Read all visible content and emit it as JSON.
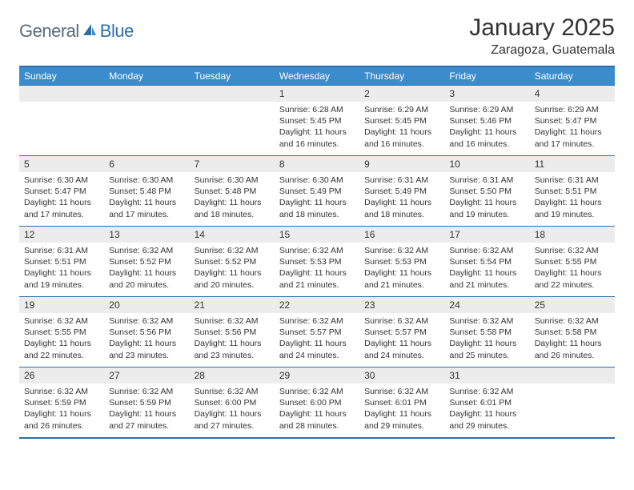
{
  "logo": {
    "text1": "General",
    "text2": "Blue"
  },
  "title": "January 2025",
  "location": "Zaragoza, Guatemala",
  "colors": {
    "header_bg": "#3b8ccc",
    "border": "#2f6fa8",
    "daynum_bg": "#ececec"
  },
  "day_names": [
    "Sunday",
    "Monday",
    "Tuesday",
    "Wednesday",
    "Thursday",
    "Friday",
    "Saturday"
  ],
  "weeks": [
    [
      {
        "n": "",
        "sr": "",
        "ss": "",
        "dl": ""
      },
      {
        "n": "",
        "sr": "",
        "ss": "",
        "dl": ""
      },
      {
        "n": "",
        "sr": "",
        "ss": "",
        "dl": ""
      },
      {
        "n": "1",
        "sr": "Sunrise: 6:28 AM",
        "ss": "Sunset: 5:45 PM",
        "dl": "Daylight: 11 hours and 16 minutes."
      },
      {
        "n": "2",
        "sr": "Sunrise: 6:29 AM",
        "ss": "Sunset: 5:45 PM",
        "dl": "Daylight: 11 hours and 16 minutes."
      },
      {
        "n": "3",
        "sr": "Sunrise: 6:29 AM",
        "ss": "Sunset: 5:46 PM",
        "dl": "Daylight: 11 hours and 16 minutes."
      },
      {
        "n": "4",
        "sr": "Sunrise: 6:29 AM",
        "ss": "Sunset: 5:47 PM",
        "dl": "Daylight: 11 hours and 17 minutes."
      }
    ],
    [
      {
        "n": "5",
        "sr": "Sunrise: 6:30 AM",
        "ss": "Sunset: 5:47 PM",
        "dl": "Daylight: 11 hours and 17 minutes."
      },
      {
        "n": "6",
        "sr": "Sunrise: 6:30 AM",
        "ss": "Sunset: 5:48 PM",
        "dl": "Daylight: 11 hours and 17 minutes."
      },
      {
        "n": "7",
        "sr": "Sunrise: 6:30 AM",
        "ss": "Sunset: 5:48 PM",
        "dl": "Daylight: 11 hours and 18 minutes."
      },
      {
        "n": "8",
        "sr": "Sunrise: 6:30 AM",
        "ss": "Sunset: 5:49 PM",
        "dl": "Daylight: 11 hours and 18 minutes."
      },
      {
        "n": "9",
        "sr": "Sunrise: 6:31 AM",
        "ss": "Sunset: 5:49 PM",
        "dl": "Daylight: 11 hours and 18 minutes."
      },
      {
        "n": "10",
        "sr": "Sunrise: 6:31 AM",
        "ss": "Sunset: 5:50 PM",
        "dl": "Daylight: 11 hours and 19 minutes."
      },
      {
        "n": "11",
        "sr": "Sunrise: 6:31 AM",
        "ss": "Sunset: 5:51 PM",
        "dl": "Daylight: 11 hours and 19 minutes."
      }
    ],
    [
      {
        "n": "12",
        "sr": "Sunrise: 6:31 AM",
        "ss": "Sunset: 5:51 PM",
        "dl": "Daylight: 11 hours and 19 minutes."
      },
      {
        "n": "13",
        "sr": "Sunrise: 6:32 AM",
        "ss": "Sunset: 5:52 PM",
        "dl": "Daylight: 11 hours and 20 minutes."
      },
      {
        "n": "14",
        "sr": "Sunrise: 6:32 AM",
        "ss": "Sunset: 5:52 PM",
        "dl": "Daylight: 11 hours and 20 minutes."
      },
      {
        "n": "15",
        "sr": "Sunrise: 6:32 AM",
        "ss": "Sunset: 5:53 PM",
        "dl": "Daylight: 11 hours and 21 minutes."
      },
      {
        "n": "16",
        "sr": "Sunrise: 6:32 AM",
        "ss": "Sunset: 5:53 PM",
        "dl": "Daylight: 11 hours and 21 minutes."
      },
      {
        "n": "17",
        "sr": "Sunrise: 6:32 AM",
        "ss": "Sunset: 5:54 PM",
        "dl": "Daylight: 11 hours and 21 minutes."
      },
      {
        "n": "18",
        "sr": "Sunrise: 6:32 AM",
        "ss": "Sunset: 5:55 PM",
        "dl": "Daylight: 11 hours and 22 minutes."
      }
    ],
    [
      {
        "n": "19",
        "sr": "Sunrise: 6:32 AM",
        "ss": "Sunset: 5:55 PM",
        "dl": "Daylight: 11 hours and 22 minutes."
      },
      {
        "n": "20",
        "sr": "Sunrise: 6:32 AM",
        "ss": "Sunset: 5:56 PM",
        "dl": "Daylight: 11 hours and 23 minutes."
      },
      {
        "n": "21",
        "sr": "Sunrise: 6:32 AM",
        "ss": "Sunset: 5:56 PM",
        "dl": "Daylight: 11 hours and 23 minutes."
      },
      {
        "n": "22",
        "sr": "Sunrise: 6:32 AM",
        "ss": "Sunset: 5:57 PM",
        "dl": "Daylight: 11 hours and 24 minutes."
      },
      {
        "n": "23",
        "sr": "Sunrise: 6:32 AM",
        "ss": "Sunset: 5:57 PM",
        "dl": "Daylight: 11 hours and 24 minutes."
      },
      {
        "n": "24",
        "sr": "Sunrise: 6:32 AM",
        "ss": "Sunset: 5:58 PM",
        "dl": "Daylight: 11 hours and 25 minutes."
      },
      {
        "n": "25",
        "sr": "Sunrise: 6:32 AM",
        "ss": "Sunset: 5:58 PM",
        "dl": "Daylight: 11 hours and 26 minutes."
      }
    ],
    [
      {
        "n": "26",
        "sr": "Sunrise: 6:32 AM",
        "ss": "Sunset: 5:59 PM",
        "dl": "Daylight: 11 hours and 26 minutes."
      },
      {
        "n": "27",
        "sr": "Sunrise: 6:32 AM",
        "ss": "Sunset: 5:59 PM",
        "dl": "Daylight: 11 hours and 27 minutes."
      },
      {
        "n": "28",
        "sr": "Sunrise: 6:32 AM",
        "ss": "Sunset: 6:00 PM",
        "dl": "Daylight: 11 hours and 27 minutes."
      },
      {
        "n": "29",
        "sr": "Sunrise: 6:32 AM",
        "ss": "Sunset: 6:00 PM",
        "dl": "Daylight: 11 hours and 28 minutes."
      },
      {
        "n": "30",
        "sr": "Sunrise: 6:32 AM",
        "ss": "Sunset: 6:01 PM",
        "dl": "Daylight: 11 hours and 29 minutes."
      },
      {
        "n": "31",
        "sr": "Sunrise: 6:32 AM",
        "ss": "Sunset: 6:01 PM",
        "dl": "Daylight: 11 hours and 29 minutes."
      },
      {
        "n": "",
        "sr": "",
        "ss": "",
        "dl": ""
      }
    ]
  ]
}
